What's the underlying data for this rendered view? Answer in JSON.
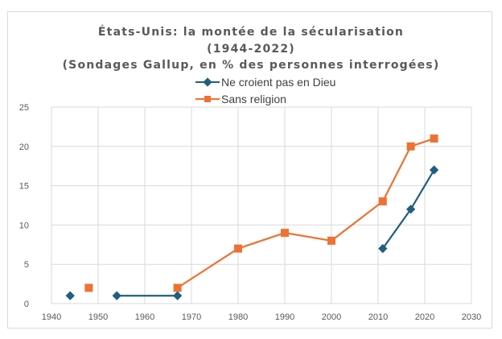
{
  "chart_data": {
    "type": "scatter",
    "title": "États-Unis: la montée de la sécularisation",
    "title_line2": "(1944-2022)",
    "subtitle": "(Sondages Gallup, en % des personnes interrogées)",
    "xlabel": "",
    "ylabel": "",
    "xlim": [
      1940,
      2030
    ],
    "ylim": [
      0,
      25
    ],
    "xticks": [
      1940,
      1950,
      1960,
      1970,
      1980,
      1990,
      2000,
      2010,
      2020,
      2030
    ],
    "yticks": [
      0,
      5,
      10,
      15,
      20,
      25
    ],
    "grid": true,
    "legend_position": "top",
    "series": [
      {
        "name": "Ne croient pas en Dieu",
        "color": "#1f5f7f",
        "marker": "diamond",
        "segments": [
          [
            [
              1944,
              1
            ]
          ],
          [
            [
              1954,
              1
            ],
            [
              1967,
              1
            ]
          ],
          [
            [
              2011,
              7
            ],
            [
              2017,
              12
            ],
            [
              2022,
              17
            ]
          ]
        ]
      },
      {
        "name": "Sans religion",
        "color": "#ed7233",
        "marker": "square",
        "segments": [
          [
            [
              1948,
              2
            ]
          ],
          [
            [
              1967,
              2
            ],
            [
              1980,
              7
            ],
            [
              1990,
              9
            ],
            [
              2000,
              8
            ],
            [
              2011,
              13
            ],
            [
              2017,
              20
            ],
            [
              2022,
              21
            ]
          ]
        ]
      }
    ]
  }
}
